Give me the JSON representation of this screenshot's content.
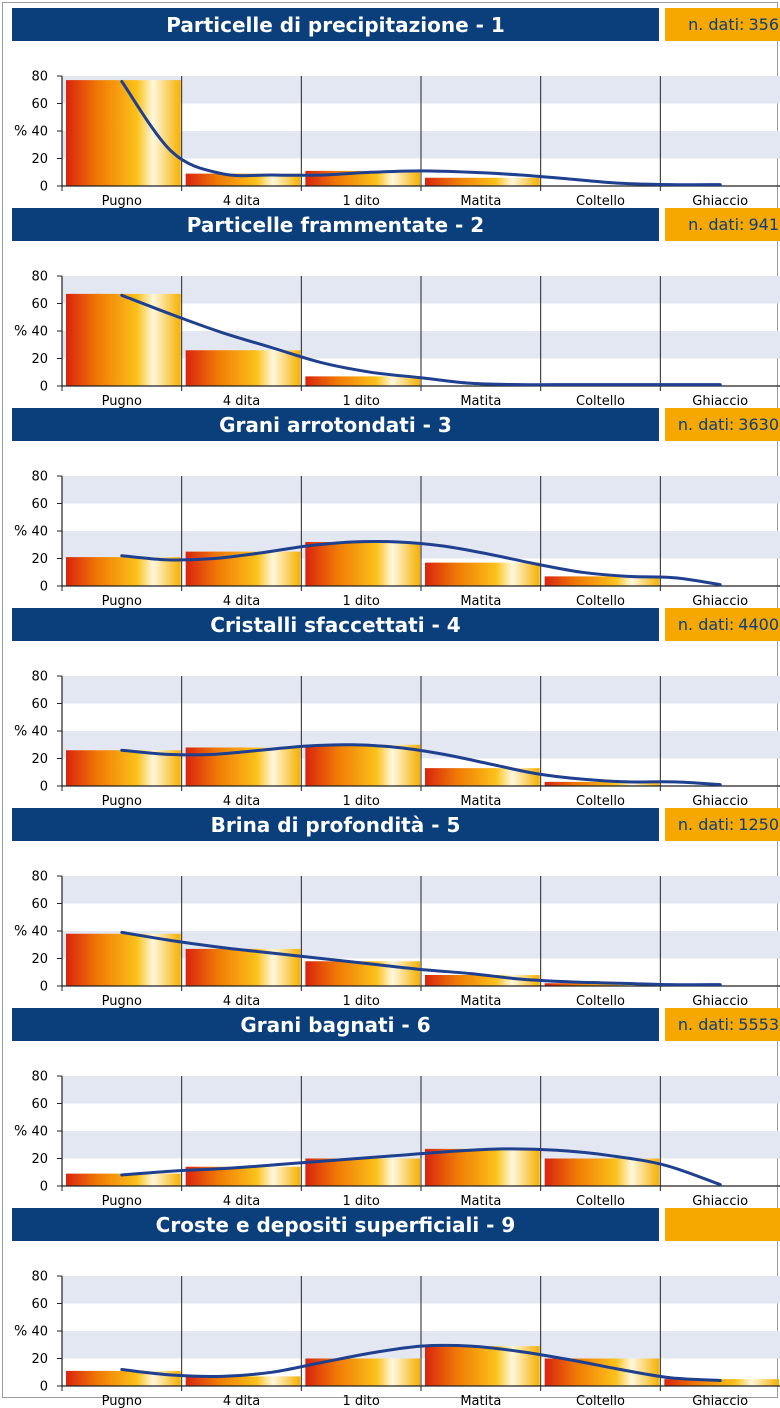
{
  "ui": {
    "count_label": "n. dati:",
    "colors": {
      "title_bg": "#0b3f7c",
      "count_bg": "#f6a800",
      "band": "#e3e7f1",
      "curve": "#1f3f8f"
    }
  },
  "chart_data": [
    {
      "type": "bar",
      "title": "Particelle di precipitazione - 1",
      "n_dati": "356",
      "categories": [
        "Pugno",
        "4 dita",
        "1 dito",
        "Matita",
        "Coltello",
        "Ghiaccio"
      ],
      "values": [
        77,
        9,
        11,
        6,
        0,
        0
      ],
      "curve": [
        76,
        25,
        9,
        8,
        8,
        10,
        11,
        10,
        8,
        5,
        2,
        1,
        1
      ],
      "ylabel": "%",
      "ylim": [
        0,
        80
      ],
      "yticks": [
        0,
        20,
        40,
        60,
        80
      ]
    },
    {
      "type": "bar",
      "title": "Particelle frammentate - 2",
      "n_dati": "941",
      "categories": [
        "Pugno",
        "4 dita",
        "1 dito",
        "Matita",
        "Coltello",
        "Ghiaccio"
      ],
      "values": [
        67,
        26,
        7,
        0,
        0,
        0
      ],
      "curve": [
        66,
        52,
        39,
        28,
        17,
        10,
        6,
        2,
        1,
        1,
        1,
        1,
        1
      ],
      "ylabel": "%",
      "ylim": [
        0,
        80
      ],
      "yticks": [
        0,
        20,
        40,
        60,
        80
      ]
    },
    {
      "type": "bar",
      "title": "Grani arrotondati - 3",
      "n_dati": "3630",
      "categories": [
        "Pugno",
        "4 dita",
        "1 dito",
        "Matita",
        "Coltello",
        "Ghiaccio"
      ],
      "values": [
        21,
        25,
        32,
        17,
        7,
        0
      ],
      "curve": [
        22,
        19,
        20,
        24,
        29,
        32,
        32,
        29,
        23,
        16,
        10,
        7,
        6,
        1
      ],
      "ylabel": "%",
      "ylim": [
        0,
        80
      ],
      "yticks": [
        0,
        20,
        40,
        60,
        80
      ]
    },
    {
      "type": "bar",
      "title": "Cristalli sfaccettati - 4",
      "n_dati": "4400",
      "categories": [
        "Pugno",
        "4 dita",
        "1 dito",
        "Matita",
        "Coltello",
        "Ghiaccio"
      ],
      "values": [
        26,
        28,
        30,
        13,
        3,
        0
      ],
      "curve": [
        26,
        23,
        23,
        26,
        29,
        30,
        28,
        23,
        16,
        9,
        5,
        3,
        3,
        1
      ],
      "ylabel": "%",
      "ylim": [
        0,
        80
      ],
      "yticks": [
        0,
        20,
        40,
        60,
        80
      ]
    },
    {
      "type": "bar",
      "title": "Brina di profondità - 5",
      "n_dati": "1250",
      "categories": [
        "Pugno",
        "4 dita",
        "1 dito",
        "Matita",
        "Coltello",
        "Ghiaccio"
      ],
      "values": [
        38,
        27,
        18,
        8,
        2,
        0
      ],
      "curve": [
        39,
        33,
        28,
        24,
        20,
        16,
        12,
        9,
        5,
        3,
        2,
        1,
        1
      ],
      "ylabel": "%",
      "ylim": [
        0,
        80
      ],
      "yticks": [
        0,
        20,
        40,
        60,
        80
      ]
    },
    {
      "type": "bar",
      "title": "Grani bagnati - 6",
      "n_dati": "5553",
      "categories": [
        "Pugno",
        "4 dita",
        "1 dito",
        "Matita",
        "Coltello",
        "Ghiaccio"
      ],
      "values": [
        9,
        14,
        20,
        27,
        20,
        0
      ],
      "curve": [
        8,
        11,
        13,
        16,
        19,
        22,
        25,
        27,
        26,
        22,
        15,
        1
      ],
      "ylabel": "%",
      "ylim": [
        0,
        80
      ],
      "yticks": [
        0,
        20,
        40,
        60,
        80
      ]
    },
    {
      "type": "bar",
      "title": "Croste e depositi superficiali - 9",
      "n_dati": "",
      "categories": [
        "Pugno",
        "4 dita",
        "1 dito",
        "Matita",
        "Coltello",
        "Ghiaccio"
      ],
      "values": [
        11,
        7,
        20,
        29,
        20,
        5
      ],
      "curve": [
        12,
        8,
        7,
        10,
        17,
        24,
        29,
        29,
        25,
        19,
        12,
        6,
        4
      ],
      "ylabel": "%",
      "ylim": [
        0,
        80
      ],
      "yticks": [
        0,
        20,
        40,
        60,
        80
      ]
    }
  ]
}
